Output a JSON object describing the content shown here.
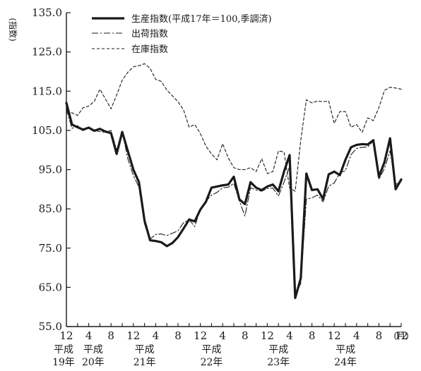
{
  "chart_data": {
    "type": "line",
    "ylabel": "(指数)",
    "x_unit_label": "(月)",
    "ylim": [
      55.0,
      135.0
    ],
    "y_ticks": [
      "55.0",
      "65.0",
      "75.0",
      "85.0",
      "95.0",
      "105.0",
      "115.0",
      "125.0",
      "135.0"
    ],
    "x_tick_labels": [
      "12",
      "4",
      "8",
      "12",
      "4",
      "8",
      "12",
      "4",
      "8",
      "12",
      "4",
      "8",
      "12",
      "4",
      "8",
      "12"
    ],
    "year_labels": [
      {
        "era": "平成",
        "year": "19年"
      },
      {
        "era": "平成",
        "year": "20年"
      },
      {
        "era": "平成",
        "year": "21年"
      },
      {
        "era": "平成",
        "year": "22年"
      },
      {
        "era": "平成",
        "year": "23年"
      },
      {
        "era": "平成",
        "year": "24年"
      }
    ],
    "x_start": "2007-12",
    "x_end": "2012-12",
    "series": [
      {
        "name": "生産指数(平成17年＝100,季調済)",
        "style": "solid-thick",
        "color": "#1a1a1a",
        "values": [
          112.0,
          106.5,
          105.8,
          105.2,
          105.7,
          104.9,
          105.4,
          104.7,
          104.3,
          99.0,
          104.6,
          99.8,
          95.0,
          91.8,
          82.0,
          77.0,
          76.8,
          76.5,
          75.5,
          76.3,
          77.8,
          80.0,
          82.3,
          81.8,
          84.8,
          86.8,
          90.4,
          90.7,
          91.0,
          91.2,
          93.2,
          87.4,
          86.2,
          91.8,
          90.4,
          89.8,
          90.7,
          91.2,
          89.5,
          94.5,
          98.7,
          62.3,
          67.3,
          94.0,
          89.8,
          90.0,
          87.5,
          93.8,
          94.5,
          93.6,
          97.5,
          100.7,
          101.3,
          101.5,
          101.4,
          102.5,
          93.2,
          96.9,
          103.0,
          90.0,
          92.5
        ]
      },
      {
        "name": "出荷指数",
        "style": "dash-dot",
        "color": "#1a1a1a",
        "values": [
          110.5,
          105.5,
          106.2,
          104.8,
          105.9,
          105.0,
          104.7,
          104.5,
          105.0,
          100.0,
          104.8,
          97.8,
          93.5,
          90.5,
          81.0,
          77.3,
          78.5,
          78.6,
          78.2,
          78.8,
          79.4,
          81.5,
          82.2,
          80.5,
          85.0,
          87.0,
          88.5,
          89.2,
          90.4,
          90.5,
          91.5,
          87.0,
          83.2,
          90.4,
          89.8,
          89.5,
          90.2,
          90.3,
          88.3,
          91.8,
          95.8,
          63.0,
          66.0,
          87.5,
          87.8,
          88.5,
          86.8,
          90.8,
          91.6,
          94.2,
          94.7,
          98.8,
          100.4,
          100.7,
          100.8,
          102.3,
          92.5,
          95.3,
          99.8,
          91.2,
          92.0
        ]
      },
      {
        "name": "在庫指数",
        "style": "dashed",
        "color": "#1a1a1a",
        "values": [
          109.5,
          109.5,
          108.8,
          110.8,
          111.2,
          112.4,
          115.5,
          113.0,
          110.5,
          114.0,
          117.8,
          119.8,
          121.2,
          121.5,
          122.0,
          120.8,
          118.0,
          117.5,
          115.3,
          113.8,
          112.3,
          110.2,
          105.8,
          106.5,
          104.2,
          101.0,
          99.0,
          97.5,
          101.6,
          98.0,
          95.5,
          95.0,
          95.0,
          95.5,
          94.5,
          97.8,
          94.0,
          94.5,
          99.8,
          99.5,
          90.3,
          89.5,
          102.5,
          112.8,
          112.0,
          112.5,
          112.3,
          112.5,
          106.8,
          109.8,
          109.8,
          105.8,
          106.5,
          104.5,
          108.2,
          107.5,
          110.8,
          115.2,
          116.0,
          115.8,
          115.5
        ]
      }
    ]
  }
}
